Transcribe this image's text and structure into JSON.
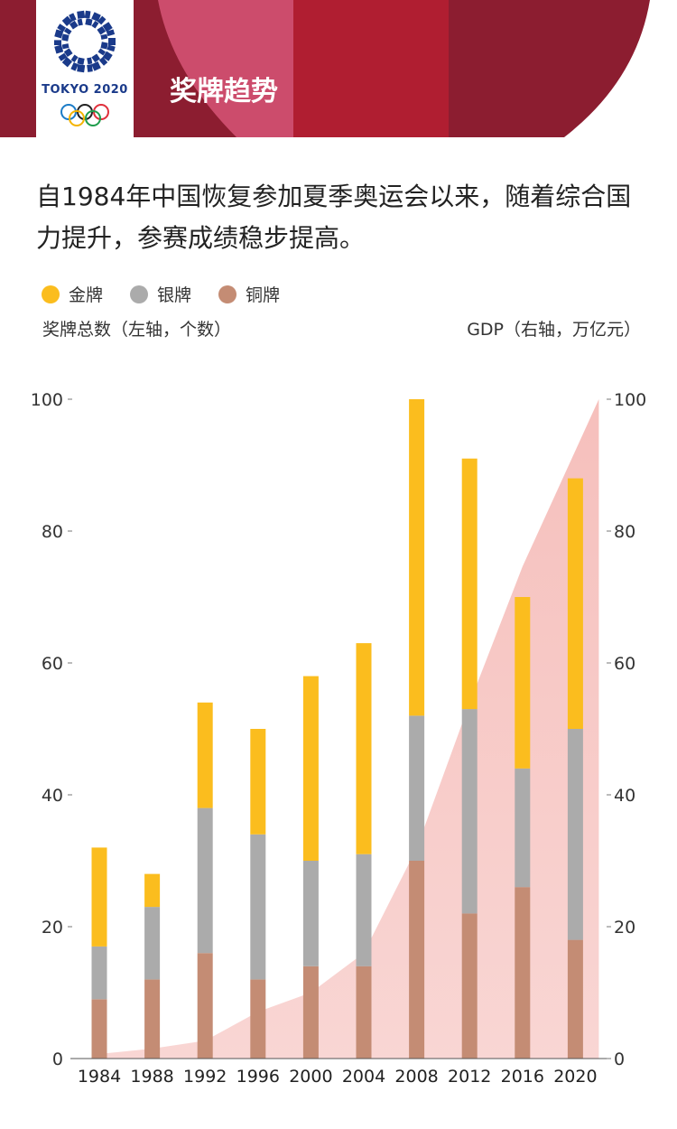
{
  "header": {
    "logo_text": "TOKYO 2020",
    "section_title": "奖牌趋势",
    "colors": {
      "dark": "#8c1d30",
      "mid": "#b01e31",
      "pink": "#cc4c6c"
    }
  },
  "intro_text": "自1984年中国恢复参加夏季奥运会以来，随着综合国力提升，参赛成绩稳步提高。",
  "chart_data": {
    "type": "bar",
    "stacked": true,
    "categories": [
      "1984",
      "1988",
      "1992",
      "1996",
      "2000",
      "2004",
      "2008",
      "2012",
      "2016",
      "2020"
    ],
    "series": [
      {
        "name": "铜牌",
        "color": "#c48c74",
        "values": [
          9,
          12,
          16,
          12,
          14,
          14,
          30,
          22,
          26,
          18
        ]
      },
      {
        "name": "银牌",
        "color": "#ababab",
        "values": [
          8,
          11,
          22,
          22,
          16,
          17,
          22,
          31,
          18,
          32
        ]
      },
      {
        "name": "金牌",
        "color": "#fbbd1e",
        "values": [
          15,
          5,
          16,
          16,
          28,
          32,
          48,
          38,
          26,
          38
        ]
      }
    ],
    "legend_order": [
      "金牌",
      "银牌",
      "铜牌"
    ],
    "legend_placement": "top-left",
    "left_axis": {
      "title": "奖牌总数（左轴，个数）",
      "range": [
        0,
        100
      ],
      "ticks": [
        0,
        20,
        40,
        60,
        80,
        100
      ]
    },
    "right_axis": {
      "title": "GDP（右轴，万亿元）",
      "range": [
        0,
        100
      ],
      "ticks": [
        0,
        20,
        40,
        60,
        80,
        100
      ]
    },
    "gdp_area": {
      "color": "#f4b4b0",
      "x": [
        1984,
        1988,
        1992,
        1996,
        2000,
        2004,
        2008,
        2012,
        2016,
        2020
      ],
      "values": [
        0.7,
        1.5,
        2.7,
        7.1,
        10.0,
        16.0,
        31.9,
        53.9,
        74.6,
        101.6
      ]
    },
    "grid": false
  }
}
